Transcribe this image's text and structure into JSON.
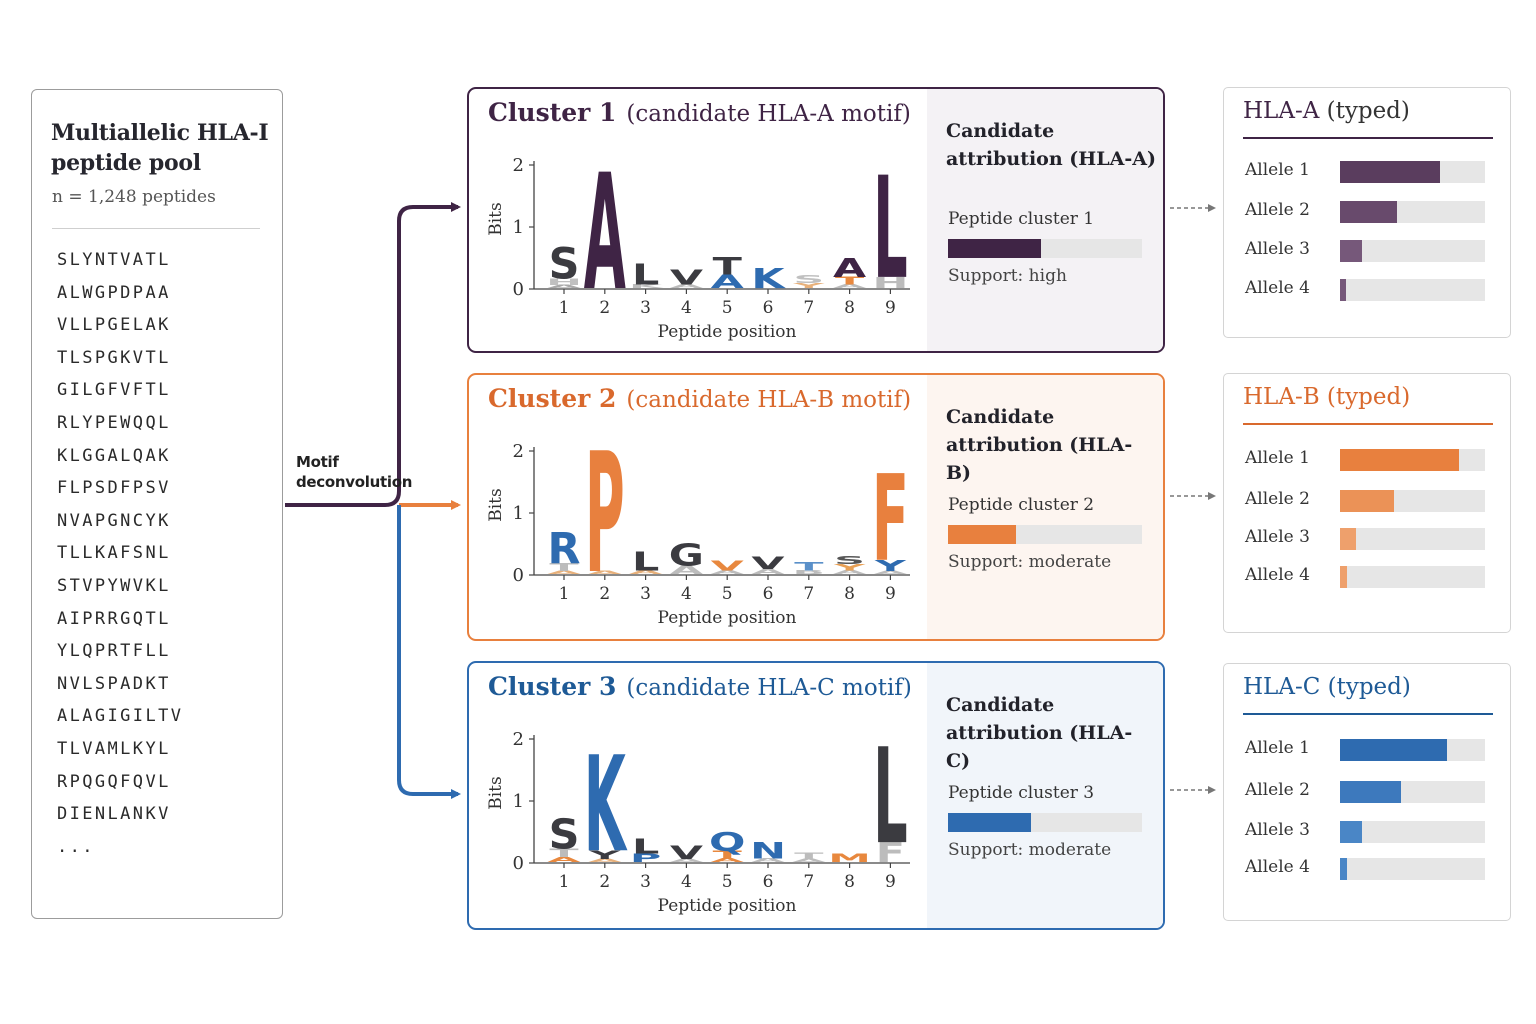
{
  "pool": {
    "title": "Multiallelic HLA-I peptide pool",
    "count": "n = 1,248 peptides",
    "peptides": [
      "SLYNTVATL",
      "ALWGPDPAA",
      "VLLPGELAK",
      "TLSPGKVTL",
      "GILGFVFTL",
      "RLYPEWQQL",
      "KLGGALQAK",
      "FLPSDFPSV",
      "NVAPGNCYK",
      "TLLKAFSNL",
      "STVPYWVKL",
      "AIPRRGQTL",
      "YLQPRTFLL",
      "NVLSPADKT",
      "ALAGIGILTV",
      "TLVAMLKYL",
      "RPQGQFQVL",
      "DIENLANKV",
      "..."
    ]
  },
  "flow": {
    "label": "Motif deconvolution"
  },
  "clusters": [
    {
      "title": "Cluster 1",
      "subtitle": "(candidate HLA-A motif)",
      "color": "#3f2445",
      "fill": "#3f2445",
      "tint": "#f4f2f5",
      "border": "#3f2445",
      "attribution_title": "Candidate attribution (HLA-A)",
      "peptide_cluster": "Peptide cluster 1",
      "support": "Support: high",
      "support_level": 0.48,
      "logo": {
        "ylabel": "Bits",
        "xlabel": "Peptide position",
        "yticks": [
          "0",
          "1",
          "2"
        ],
        "positions": [
          "1",
          "2",
          "3",
          "4",
          "5",
          "6",
          "7",
          "8",
          "9"
        ],
        "columns": [
          [
            {
              "l": "A",
              "h": 0.05,
              "c": "#aaaaaa"
            },
            {
              "l": "H",
              "h": 0.1,
              "c": "#c0c0c0"
            },
            {
              "l": "S",
              "h": 0.5,
              "c": "#3b3b40"
            }
          ],
          [
            {
              "l": "A",
              "h": 1.88,
              "c": "#3f2445"
            }
          ],
          [
            {
              "l": "K",
              "h": 0.06,
              "c": "#bcbcbc"
            },
            {
              "l": "L",
              "h": 0.34,
              "c": "#3b3b40"
            }
          ],
          [
            {
              "l": "A",
              "h": 0.06,
              "c": "#bcbcbc"
            },
            {
              "l": "V",
              "h": 0.24,
              "c": "#3b3b40"
            }
          ],
          [
            {
              "l": "A",
              "h": 0.22,
              "c": "#2e6bb0"
            },
            {
              "l": "T",
              "h": 0.28,
              "c": "#3b3b40"
            }
          ],
          [
            {
              "l": "K",
              "h": 0.32,
              "c": "#2e6bb0"
            }
          ],
          [
            {
              "l": "Y",
              "h": 0.08,
              "c": "#e7b07a"
            },
            {
              "l": "S",
              "h": 0.12,
              "c": "#c0c0c0"
            }
          ],
          [
            {
              "l": "A",
              "h": 0.06,
              "c": "#bcbcbc"
            },
            {
              "l": "T",
              "h": 0.12,
              "c": "#e8883e"
            },
            {
              "l": "A",
              "h": 0.3,
              "c": "#3f2445"
            }
          ],
          [
            {
              "l": "H",
              "h": 0.18,
              "c": "#bcbcbc"
            },
            {
              "l": "L",
              "h": 1.65,
              "c": "#3f2445"
            }
          ]
        ]
      },
      "typed": {
        "title_bold": "HLA-A",
        "title_rest": " (typed)",
        "color": "#3f2445",
        "alleles": [
          {
            "label": "Allele 1",
            "value": 0.69,
            "color": "#5a3d5e"
          },
          {
            "label": "Allele 2",
            "value": 0.39,
            "color": "#684a6c"
          },
          {
            "label": "Allele 3",
            "value": 0.15,
            "color": "#76587a"
          },
          {
            "label": "Allele 4",
            "value": 0.04,
            "color": "#76587a"
          }
        ]
      }
    },
    {
      "title": "Cluster 2",
      "subtitle": "(candidate HLA-B motif)",
      "color": "#d9692d",
      "fill": "#e8803e",
      "tint": "#fdf5f0",
      "border": "#e8803e",
      "attribution_title": "Candidate attribution (HLA-B)",
      "peptide_cluster": "Peptide cluster 2",
      "support": "Support: moderate",
      "support_level": 0.35,
      "logo": {
        "ylabel": "Bits",
        "xlabel": "Peptide position",
        "yticks": [
          "0",
          "1",
          "2"
        ],
        "positions": [
          "1",
          "2",
          "3",
          "4",
          "5",
          "6",
          "7",
          "8",
          "9"
        ],
        "columns": [
          [
            {
              "l": "A",
              "h": 0.05,
              "c": "#e7b07a"
            },
            {
              "l": "T",
              "h": 0.12,
              "c": "#bcbcbc"
            },
            {
              "l": "R",
              "h": 0.5,
              "c": "#2e6bb0"
            }
          ],
          [
            {
              "l": "A",
              "h": 0.03,
              "c": "#e7b07a"
            },
            {
              "l": "P",
              "h": 1.95,
              "c": "#e8803e"
            }
          ],
          [
            {
              "l": "A",
              "h": 0.06,
              "c": "#e7b07a"
            },
            {
              "l": "L",
              "h": 0.3,
              "c": "#3b3b40"
            }
          ],
          [
            {
              "l": "A",
              "h": 0.14,
              "c": "#bcbcbc"
            },
            {
              "l": "G",
              "h": 0.36,
              "c": "#3b3b40"
            }
          ],
          [
            {
              "l": "A",
              "h": 0.06,
              "c": "#bcbcbc"
            },
            {
              "l": "V",
              "h": 0.16,
              "c": "#e8883e"
            }
          ],
          [
            {
              "l": "A",
              "h": 0.08,
              "c": "#bcbcbc"
            },
            {
              "l": "V",
              "h": 0.2,
              "c": "#3b3b40"
            }
          ],
          [
            {
              "l": "B",
              "h": 0.06,
              "c": "#bcbcbc"
            },
            {
              "l": "T",
              "h": 0.14,
              "c": "#5a90c9"
            }
          ],
          [
            {
              "l": "A",
              "h": 0.06,
              "c": "#bcbcbc"
            },
            {
              "l": "Y",
              "h": 0.1,
              "c": "#e8a055"
            },
            {
              "l": "S",
              "h": 0.12,
              "c": "#555555"
            }
          ],
          [
            {
              "l": "A",
              "h": 0.05,
              "c": "#bcbcbc"
            },
            {
              "l": "Y",
              "h": 0.18,
              "c": "#2e6bb0"
            },
            {
              "l": "F",
              "h": 1.4,
              "c": "#e8803e"
            }
          ]
        ]
      },
      "typed": {
        "title_bold": "HLA-B",
        "title_rest": " (typed)",
        "color": "#d9692d",
        "alleles": [
          {
            "label": "Allele 1",
            "value": 0.82,
            "color": "#e8803e"
          },
          {
            "label": "Allele 2",
            "value": 0.37,
            "color": "#eb9257"
          },
          {
            "label": "Allele 3",
            "value": 0.11,
            "color": "#eea06c"
          },
          {
            "label": "Allele 4",
            "value": 0.05,
            "color": "#eea06c"
          }
        ]
      }
    },
    {
      "title": "Cluster 3",
      "subtitle": "(candidate HLA-C motif)",
      "color": "#1e5a96",
      "fill": "#2e6bb0",
      "tint": "#f1f5fa",
      "border": "#2e6bb0",
      "attribution_title": "Candidate attribution (HLA-C)",
      "peptide_cluster": "Peptide cluster 3",
      "support": "Support: moderate",
      "support_level": 0.43,
      "logo": {
        "ylabel": "Bits",
        "xlabel": "Peptide position",
        "yticks": [
          "0",
          "1",
          "2"
        ],
        "positions": [
          "1",
          "2",
          "3",
          "4",
          "5",
          "6",
          "7",
          "8",
          "9"
        ],
        "columns": [
          [
            {
              "l": "A",
              "h": 0.08,
              "c": "#e8883e"
            },
            {
              "l": "T",
              "h": 0.14,
              "c": "#bcbcbc"
            },
            {
              "l": "S",
              "h": 0.48,
              "c": "#3b3b40"
            }
          ],
          [
            {
              "l": "A",
              "h": 0.05,
              "c": "#e7b07a"
            },
            {
              "l": "Y",
              "h": 0.14,
              "c": "#3b3b40"
            },
            {
              "l": "K",
              "h": 1.55,
              "c": "#2e6bb0"
            }
          ],
          [
            {
              "l": "P",
              "h": 0.14,
              "c": "#2e6bb0"
            },
            {
              "l": "L",
              "h": 0.24,
              "c": "#3b3b40"
            }
          ],
          [
            {
              "l": "A",
              "h": 0.05,
              "c": "#bcbcbc"
            },
            {
              "l": "V",
              "h": 0.22,
              "c": "#3b3b40"
            }
          ],
          [
            {
              "l": "A",
              "h": 0.06,
              "c": "#e8883e"
            },
            {
              "l": "T",
              "h": 0.12,
              "c": "#e8883e"
            },
            {
              "l": "Q",
              "h": 0.3,
              "c": "#2e6bb0"
            }
          ],
          [
            {
              "l": "A",
              "h": 0.06,
              "c": "#bcbcbc"
            },
            {
              "l": "N",
              "h": 0.26,
              "c": "#2e6bb0"
            }
          ],
          [
            {
              "l": "A",
              "h": 0.05,
              "c": "#bcbcbc"
            },
            {
              "l": "T",
              "h": 0.1,
              "c": "#bcbcbc"
            }
          ],
          [
            {
              "l": "M",
              "h": 0.14,
              "c": "#e8883e"
            }
          ],
          [
            {
              "l": "F",
              "h": 0.32,
              "c": "#bcbcbc"
            },
            {
              "l": "L",
              "h": 1.55,
              "c": "#3b3b40"
            }
          ]
        ]
      },
      "typed": {
        "title_bold": "HLA-C",
        "title_rest": " (typed)",
        "color": "#1e5a96",
        "alleles": [
          {
            "label": "Allele 1",
            "value": 0.74,
            "color": "#2e6bb0"
          },
          {
            "label": "Allele 2",
            "value": 0.42,
            "color": "#3d79bd"
          },
          {
            "label": "Allele 3",
            "value": 0.15,
            "color": "#4a86c6"
          },
          {
            "label": "Allele 4",
            "value": 0.05,
            "color": "#4a86c6"
          }
        ]
      }
    }
  ]
}
